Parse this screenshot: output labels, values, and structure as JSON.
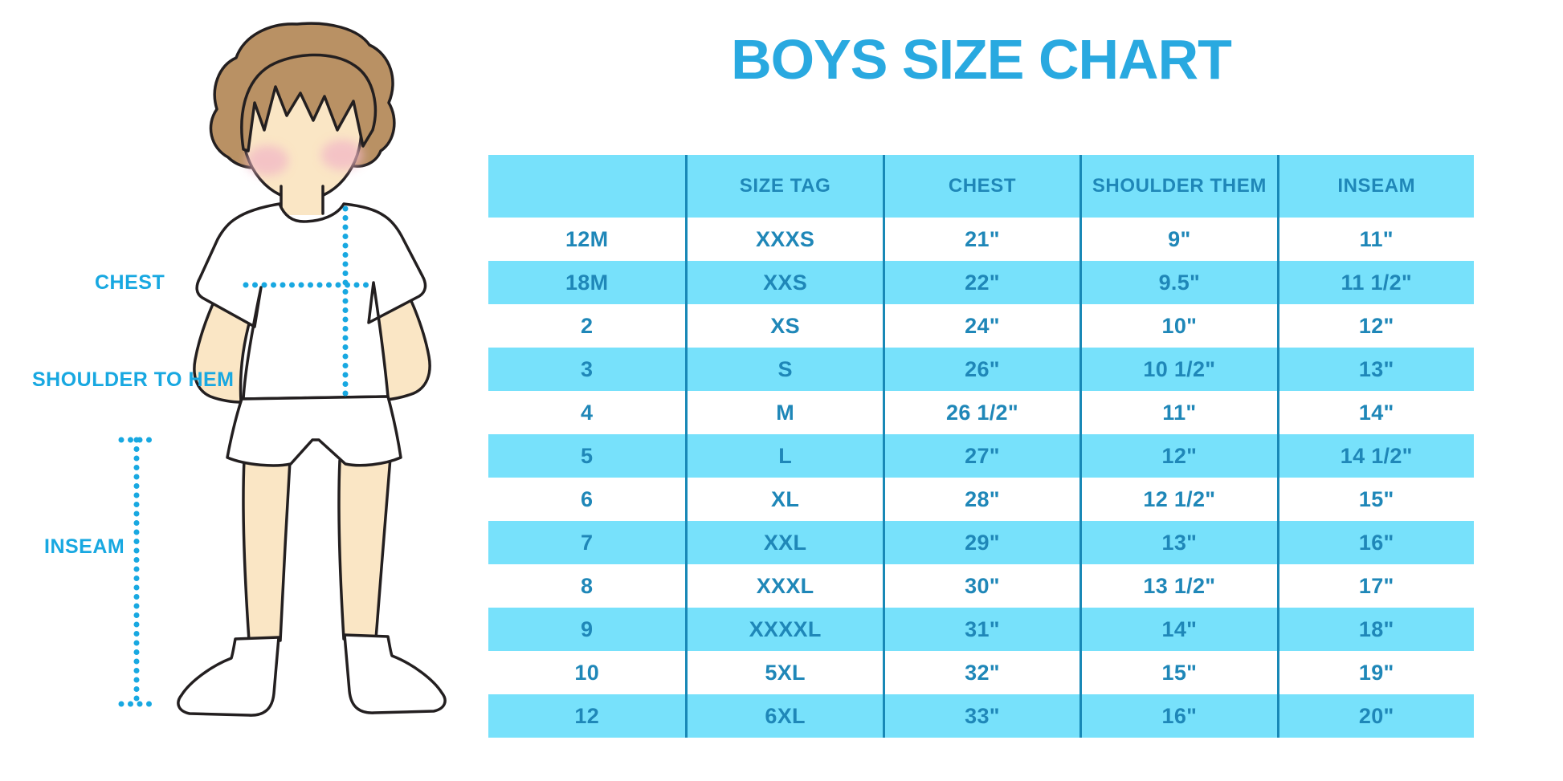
{
  "title": "BOYS SIZE CHART",
  "colors": {
    "title_blue": "#29A9E0",
    "label_blue": "#18A8E1",
    "table_fill": "#77E1FB",
    "table_line": "#1888B6",
    "table_text": "#1F87B8",
    "skin": "#FAE6C5",
    "hair": "#B99164",
    "cheek": "#F2B8C6",
    "outline": "#231F20"
  },
  "figure": {
    "description": "boy-with-measurement-lines",
    "labels": {
      "chest": "CHEST",
      "shoulder_to_hem": "SHOULDER TO HEM",
      "inseam": "INSEAM"
    }
  },
  "chart_data": {
    "type": "table",
    "title": "BOYS SIZE CHART",
    "columns": [
      "",
      "SIZE TAG",
      "CHEST",
      "SHOULDER THEM",
      "INSEAM"
    ],
    "rows": [
      [
        "12M",
        "XXXS",
        "21\"",
        "9\"",
        "11\""
      ],
      [
        "18M",
        "XXS",
        "22\"",
        "9.5\"",
        "11 1/2\""
      ],
      [
        "2",
        "XS",
        "24\"",
        "10\"",
        "12\""
      ],
      [
        "3",
        "S",
        "26\"",
        "10 1/2\"",
        "13\""
      ],
      [
        "4",
        "M",
        "26 1/2\"",
        "11\"",
        "14\""
      ],
      [
        "5",
        "L",
        "27\"",
        "12\"",
        "14 1/2\""
      ],
      [
        "6",
        "XL",
        "28\"",
        "12 1/2\"",
        "15\""
      ],
      [
        "7",
        "XXL",
        "29\"",
        "13\"",
        "16\""
      ],
      [
        "8",
        "XXXL",
        "30\"",
        "13 1/2\"",
        "17\""
      ],
      [
        "9",
        "XXXXL",
        "31\"",
        "14\"",
        "18\""
      ],
      [
        "10",
        "5XL",
        "32\"",
        "15\"",
        "19\""
      ],
      [
        "12",
        "6XL",
        "33\"",
        "16\"",
        "20\""
      ]
    ]
  }
}
